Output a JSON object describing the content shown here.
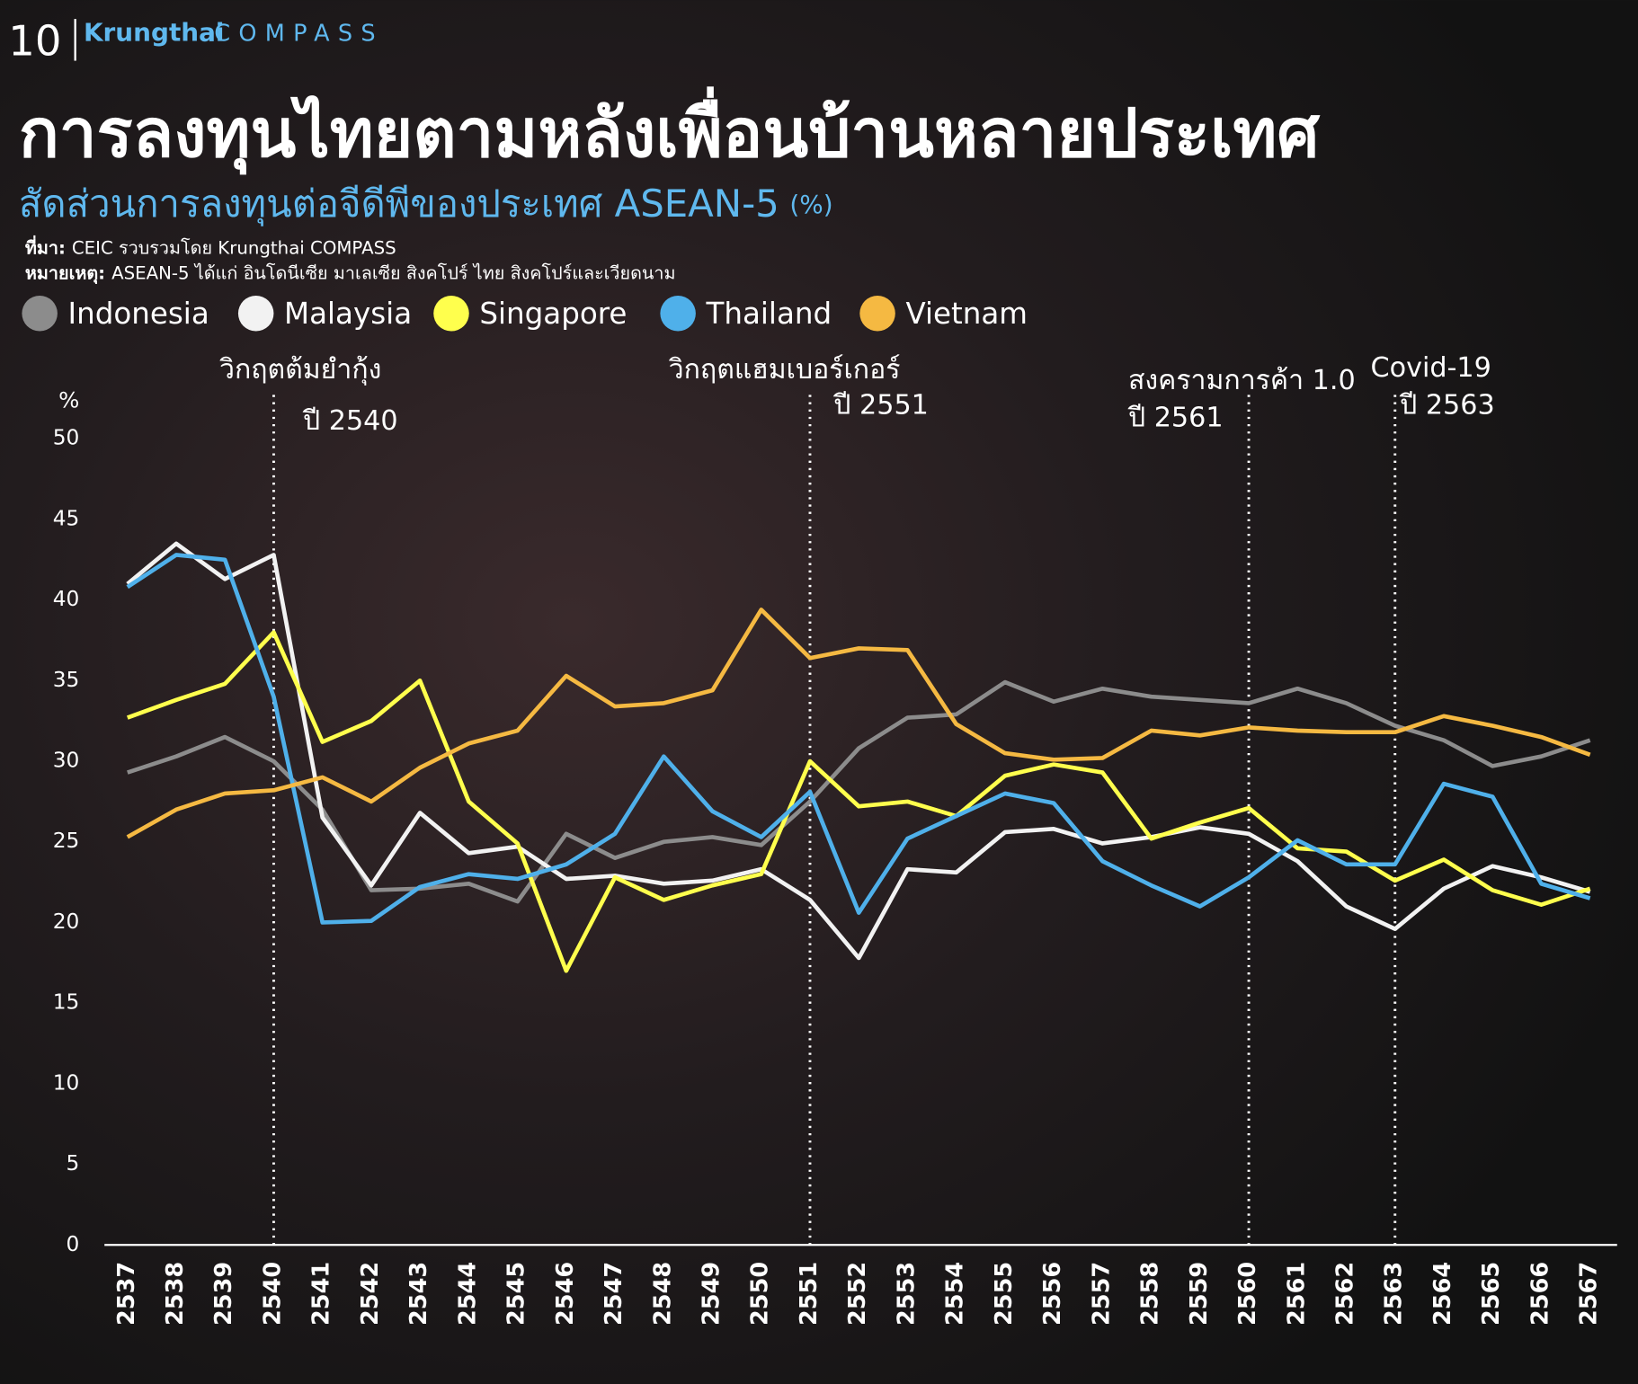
{
  "page_number": "10",
  "brand": {
    "name": "Krungthai",
    "product": "COMPASS"
  },
  "chart_data": {
    "type": "line",
    "title": "การลงทุนไทยตามหลังเพื่อนบ้านหลายประเทศ",
    "subtitle": "สัดส่วนการลงทุนต่อจีดีพีของประเทศ ASEAN-5",
    "subtitle_unit": "(%)",
    "source_label": "ที่มา:",
    "source": "CEIC รวบรวมโดย Krungthai COMPASS",
    "note_label": "หมายเหตุ:",
    "note": "ASEAN-5 ได้แก่ อินโดนีเซีย มาเลเซีย สิงคโปร์ ไทย สิงคโปร์และเวียดนาม",
    "y_label": "%",
    "categories": [
      2537,
      2538,
      2539,
      2540,
      2541,
      2542,
      2543,
      2544,
      2545,
      2546,
      2547,
      2548,
      2549,
      2550,
      2551,
      2552,
      2553,
      2554,
      2555,
      2556,
      2557,
      2558,
      2559,
      2560,
      2561,
      2562,
      2563,
      2564,
      2565,
      2566,
      2567
    ],
    "ylim": [
      0,
      50
    ],
    "yticks": [
      0,
      5,
      10,
      15,
      20,
      25,
      30,
      35,
      40,
      45,
      50
    ],
    "series": [
      {
        "name": "Indonesia",
        "color": "#8c8c8c",
        "values": [
          29.3,
          30.3,
          31.5,
          30.0,
          27.0,
          22.0,
          22.1,
          22.4,
          21.3,
          25.5,
          24.0,
          25.0,
          25.3,
          24.8,
          27.5,
          30.8,
          32.7,
          32.9,
          34.9,
          33.7,
          34.5,
          34.0,
          33.8,
          33.6,
          34.5,
          33.6,
          32.2,
          31.3,
          29.7,
          30.3,
          31.3
        ]
      },
      {
        "name": "Malaysia",
        "color": "#f2f2f2",
        "values": [
          41.0,
          43.5,
          41.3,
          42.8,
          26.5,
          22.3,
          26.8,
          24.3,
          24.7,
          22.7,
          22.9,
          22.4,
          22.6,
          23.3,
          21.4,
          17.8,
          23.3,
          23.1,
          25.6,
          25.8,
          24.9,
          25.3,
          25.9,
          25.5,
          23.8,
          21.0,
          19.6,
          22.1,
          23.5,
          22.8,
          21.9
        ]
      },
      {
        "name": "Singapore",
        "color": "#ffff4d",
        "values": [
          32.7,
          33.8,
          34.8,
          38.0,
          31.2,
          32.5,
          35.0,
          27.5,
          24.9,
          17.0,
          22.8,
          21.4,
          22.3,
          23.0,
          30.0,
          27.2,
          27.5,
          26.6,
          29.1,
          29.8,
          29.3,
          25.2,
          26.2,
          27.1,
          24.6,
          24.4,
          22.6,
          23.9,
          22.0,
          21.1,
          22.1
        ]
      },
      {
        "name": "Thailand",
        "color": "#4fb0ea",
        "values": [
          40.8,
          42.8,
          42.5,
          34.0,
          20.0,
          20.1,
          22.2,
          23.0,
          22.7,
          23.6,
          25.5,
          30.3,
          26.9,
          25.3,
          28.1,
          20.6,
          25.2,
          26.6,
          28.0,
          27.4,
          23.8,
          22.3,
          21.0,
          22.8,
          25.1,
          23.6,
          23.6,
          28.6,
          27.8,
          22.4,
          21.5
        ]
      },
      {
        "name": "Vietnam",
        "color": "#f5b942",
        "values": [
          25.3,
          27.0,
          28.0,
          28.2,
          29.0,
          27.5,
          29.6,
          31.1,
          31.9,
          35.3,
          33.4,
          33.6,
          34.4,
          39.4,
          36.4,
          37.0,
          36.9,
          32.3,
          30.5,
          30.1,
          30.2,
          31.9,
          31.6,
          32.1,
          31.9,
          31.8,
          31.8,
          32.8,
          32.2,
          31.5,
          30.4
        ]
      }
    ],
    "annotations": [
      {
        "x": 2540,
        "text": "วิกฤตต้มยำกุ้ง",
        "subtext": "ปี 2540"
      },
      {
        "x": 2551,
        "text": "วิกฤตแฮมเบอร์เกอร์",
        "subtext": "ปี 2551"
      },
      {
        "x": 2560,
        "text": "สงครามการค้า 1.0",
        "subtext": "ปี 2561"
      },
      {
        "x": 2563,
        "text": "Covid-19",
        "subtext": "ปี 2563"
      }
    ]
  }
}
